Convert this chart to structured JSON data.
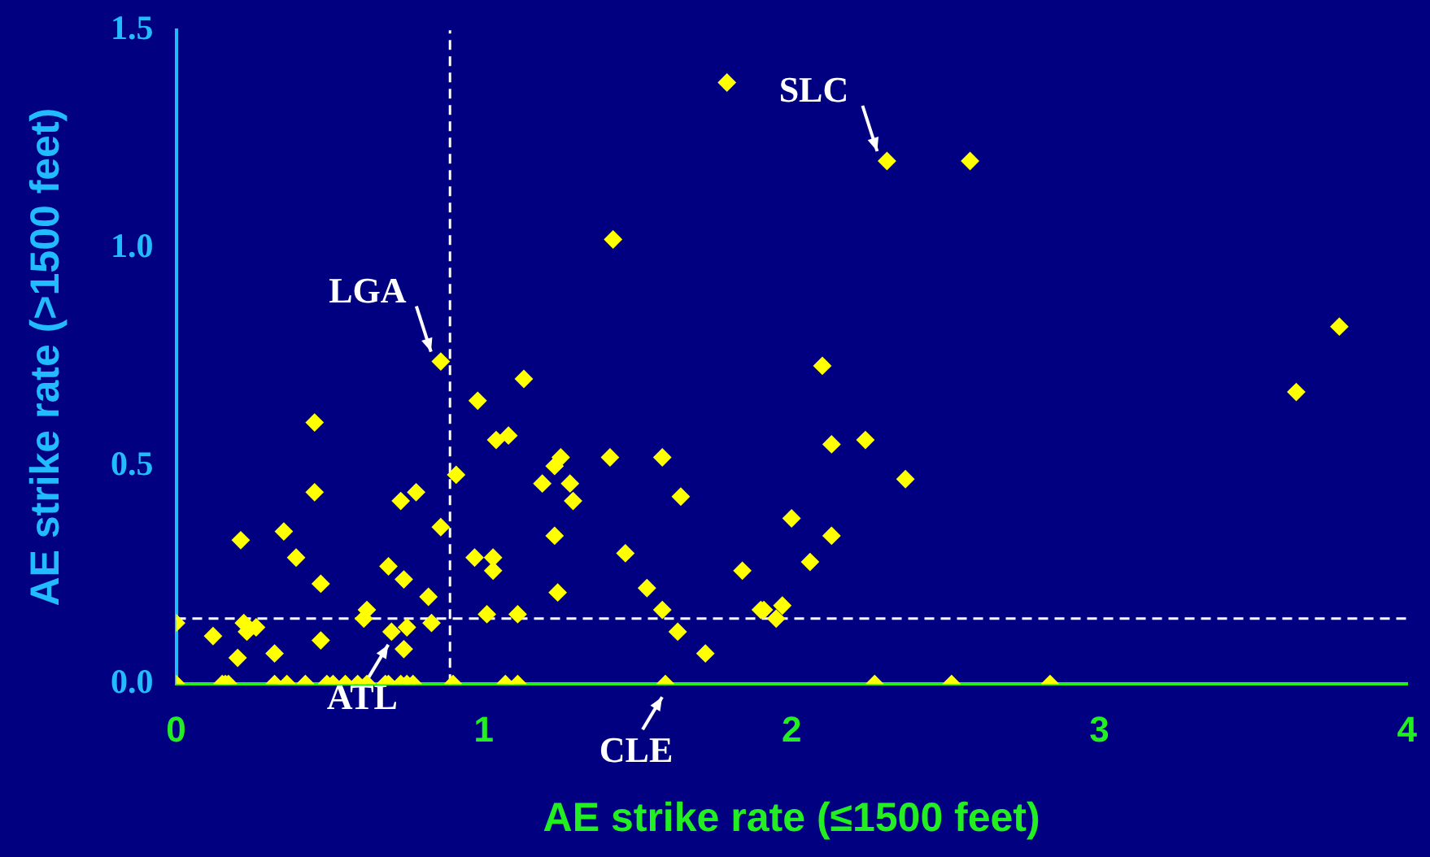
{
  "chart_data": {
    "type": "scatter",
    "xlabel": "AE strike rate (≤1500 feet)",
    "ylabel": "AE strike rate (>1500 feet)",
    "x": [
      0,
      0.15,
      0.16,
      0.17,
      0.32,
      0.36,
      0.42,
      0.49,
      0.51,
      0.55,
      0.59,
      0.62,
      0.68,
      0.69,
      0.73,
      0.75,
      0.77,
      0.9,
      1.07,
      1.11,
      1.59,
      2.27,
      2.52,
      2.84,
      0.86,
      0.45,
      0.98,
      0.45,
      0.73,
      0.78,
      0.91,
      0.86,
      0.21,
      0.35,
      0.39,
      0.47,
      0.69,
      0.74,
      0.82,
      0.97,
      0,
      0.22,
      0.23,
      0.26,
      0.12,
      0.2,
      0.32,
      0.47,
      0.62,
      0.61,
      0.7,
      0.75,
      0.74,
      0.83,
      1.01,
      1.13,
      1.04,
      1.08,
      1.25,
      1.23,
      1.41,
      1.58,
      1.19,
      1.28,
      1.29,
      1.64,
      1.23,
      1.03,
      1.03,
      1.46,
      1.84,
      1.24,
      1.53,
      1.58,
      1.63,
      1.72,
      1.11,
      1.9,
      2.1,
      2.13,
      2.24,
      2.37,
      2,
      2.13,
      2.06,
      1.91,
      1.97,
      1.95,
      1.79,
      2.31,
      2.58,
      1.42,
      3.78,
      3.64
    ],
    "values": [
      0,
      0,
      0,
      0,
      0,
      0,
      0,
      0,
      0,
      0,
      0,
      0,
      0,
      0,
      0,
      0,
      0,
      0,
      0,
      0,
      0,
      0,
      0,
      0,
      0.74,
      0.6,
      0.65,
      0.44,
      0.42,
      0.44,
      0.48,
      0.36,
      0.33,
      0.35,
      0.29,
      0.23,
      0.27,
      0.24,
      0.2,
      0.29,
      0.14,
      0.14,
      0.12,
      0.13,
      0.11,
      0.06,
      0.07,
      0.1,
      0.17,
      0.15,
      0.12,
      0.13,
      0.08,
      0.14,
      0.16,
      0.7,
      0.56,
      0.57,
      0.52,
      0.5,
      0.52,
      0.52,
      0.46,
      0.46,
      0.42,
      0.43,
      0.34,
      0.29,
      0.26,
      0.3,
      0.26,
      0.21,
      0.22,
      0.17,
      0.12,
      0.07,
      0.16,
      0.17,
      0.73,
      0.55,
      0.56,
      0.47,
      0.38,
      0.34,
      0.28,
      0.17,
      0.18,
      0.15,
      1.38,
      1.2,
      1.2,
      1.02,
      0.82,
      0.67
    ],
    "color": "#ffff00",
    "marker": "diamond",
    "grid": false,
    "legend": false,
    "xlim": [
      0,
      4
    ],
    "xticks": [
      0,
      1,
      2,
      3,
      4
    ],
    "ylim": [
      0,
      1.5
    ],
    "yticks": [
      {
        "value": 0,
        "label": "0.0"
      },
      {
        "value": 0.5,
        "label": "0.5"
      },
      {
        "value": 1,
        "label": "1.0"
      },
      {
        "value": 1.5,
        "label": "1.5"
      }
    ],
    "ref_lines": [
      {
        "axis": "x",
        "value": 0.89,
        "color": "#ffffff",
        "line_style": "dashed"
      },
      {
        "axis": "y",
        "value": 0.15,
        "color": "#ffffff",
        "line_style": "dashed"
      }
    ],
    "annotations": [
      {
        "text": "LGA",
        "x": 0.86,
        "y": 0.74
      },
      {
        "text": "SLC",
        "x": 2.31,
        "y": 1.2
      },
      {
        "text": "ATL",
        "x": 0.7,
        "y": 0.12
      },
      {
        "text": "CLE",
        "x": 1.59,
        "y": 0
      }
    ]
  }
}
